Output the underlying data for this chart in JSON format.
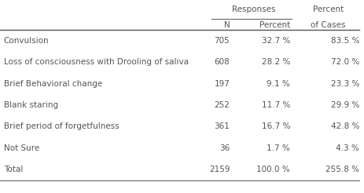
{
  "rows": [
    [
      "Convulsion",
      "705",
      "32.7 %",
      "83.5 %"
    ],
    [
      "Loss of consciousness with Drooling of saliva",
      "608",
      "28.2 %",
      "72.0 %"
    ],
    [
      "Brief Behavioral change",
      "197",
      "9.1 %",
      "23.3 %"
    ],
    [
      "Blank staring",
      "252",
      "11.7 %",
      "29.9 %"
    ],
    [
      "Brief period of forgetfulness",
      "361",
      "16.7 %",
      "42.8 %"
    ],
    [
      "Not Sure",
      "36",
      "1.7 %",
      "4.3 %"
    ],
    [
      "Total",
      "2159",
      "100.0 %",
      "255.8 %"
    ]
  ],
  "bg_color": "#ffffff",
  "text_color": "#555555",
  "font_size": 7.5,
  "header_font_size": 7.5,
  "fig_width": 4.64,
  "fig_height": 2.46,
  "dpi": 100
}
